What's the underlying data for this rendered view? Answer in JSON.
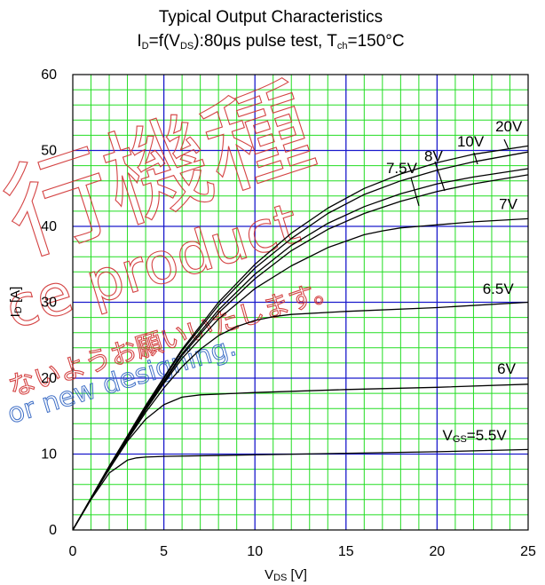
{
  "chart_data": {
    "type": "line",
    "title_line1": "Typical Output Characteristics",
    "title_line2": {
      "p1": "I",
      "s1": "D",
      "p2": "=f(V",
      "s2": "DS",
      "p3": "):80μs pulse test, T",
      "s3": "ch",
      "p4": "=150°C"
    },
    "xlabel": {
      "main": "V",
      "sub": "DS",
      "unit": " [V]"
    },
    "ylabel": {
      "main": "I",
      "sub": "D",
      "unit": " [A]"
    },
    "xlim": [
      0,
      25
    ],
    "ylim": [
      0,
      60
    ],
    "xticks": [
      "0",
      "5",
      "10",
      "15",
      "20",
      "25"
    ],
    "yticks": [
      "0",
      "10",
      "20",
      "30",
      "40",
      "50",
      "60"
    ],
    "grid": true,
    "colors": {
      "minor_grid": "#22dd22",
      "major_grid": "#1a1acc",
      "curve": "#000000"
    },
    "series": [
      {
        "name": "VGS=5.5V",
        "x": [
          0,
          1,
          2,
          3,
          3.5,
          4,
          5,
          10,
          15,
          20,
          25
        ],
        "y": [
          0,
          4,
          7.5,
          9.2,
          9.5,
          9.6,
          9.7,
          9.9,
          10.1,
          10.3,
          10.6
        ]
      },
      {
        "name": "6V",
        "x": [
          0,
          1,
          2,
          3,
          4,
          5,
          6,
          7,
          8,
          10,
          15,
          20,
          25
        ],
        "y": [
          0,
          4.1,
          8,
          11.7,
          14.6,
          16.5,
          17.5,
          17.8,
          17.9,
          18.1,
          18.5,
          18.8,
          19.2
        ]
      },
      {
        "name": "6.5V",
        "x": [
          0,
          1,
          2,
          3,
          4,
          5,
          6,
          7,
          8,
          9,
          10,
          11,
          12,
          15,
          20,
          25
        ],
        "y": [
          0,
          4.1,
          8.1,
          11.9,
          15.5,
          18.7,
          21.5,
          23.8,
          25.6,
          26.8,
          27.6,
          28.1,
          28.4,
          28.8,
          29.3,
          30.0
        ]
      },
      {
        "name": "7V",
        "x": [
          0,
          1,
          2,
          3,
          4,
          5,
          6,
          8,
          10,
          12,
          14,
          16,
          17,
          18,
          19,
          20,
          22,
          25
        ],
        "y": [
          0,
          4.2,
          8.2,
          12,
          15.8,
          19.3,
          22.6,
          27.8,
          31.8,
          34.8,
          37.2,
          38.9,
          39.4,
          39.8,
          40.0,
          40.2,
          40.6,
          41.0
        ]
      },
      {
        "name": "7.5V",
        "x": [
          0,
          2,
          4,
          6,
          8,
          10,
          12,
          14,
          16,
          18,
          20,
          22,
          25
        ],
        "y": [
          0,
          8.3,
          16,
          23,
          28.6,
          33.1,
          36.8,
          39.6,
          41.7,
          43.3,
          44.6,
          45.6,
          46.8
        ]
      },
      {
        "name": "8V",
        "x": [
          0,
          2,
          4,
          6,
          8,
          10,
          12,
          14,
          16,
          18,
          20,
          22,
          25
        ],
        "y": [
          0,
          8.3,
          16.1,
          23.2,
          29,
          33.7,
          37.5,
          40.4,
          42.6,
          44.3,
          45.6,
          46.5,
          47.6
        ]
      },
      {
        "name": "10V",
        "x": [
          0,
          2,
          4,
          6,
          8,
          10,
          12,
          14,
          16,
          18,
          20,
          22,
          25
        ],
        "y": [
          0,
          8.4,
          16.3,
          23.6,
          29.6,
          34.5,
          38.4,
          41.7,
          44.2,
          46.0,
          47.4,
          48.5,
          49.8
        ]
      },
      {
        "name": "20V",
        "x": [
          0,
          2,
          4,
          6,
          8,
          10,
          12,
          14,
          16,
          18,
          20,
          22,
          25
        ],
        "y": [
          0,
          8.4,
          16.4,
          23.8,
          30,
          35,
          39.1,
          42.4,
          45,
          46.9,
          48.4,
          49.5,
          50.6
        ]
      }
    ],
    "annotations": [
      {
        "text": "20V",
        "x": 23.2,
        "y": 52.5
      },
      {
        "text": "10V",
        "x": 21.1,
        "y": 50.5
      },
      {
        "text": "8V",
        "x": 19.3,
        "y": 48.6
      },
      {
        "text": "7.5V",
        "x": 17.2,
        "y": 47.0
      },
      {
        "text": "7V",
        "x": 23.4,
        "y": 42.3
      },
      {
        "text": "6.5V",
        "x": 22.5,
        "y": 31.1
      },
      {
        "text": "6V",
        "x": 23.3,
        "y": 20.6
      },
      {
        "text_main": "V",
        "text_sub": "GS",
        "text_rest": "=5.5V",
        "x": 20.3,
        "y": 11.8
      }
    ]
  },
  "watermark": {
    "kanji1": "行機種",
    "line_ce": "ce product",
    "line_jp": "ないようお願いいたします。",
    "line_en": "or new designing."
  }
}
